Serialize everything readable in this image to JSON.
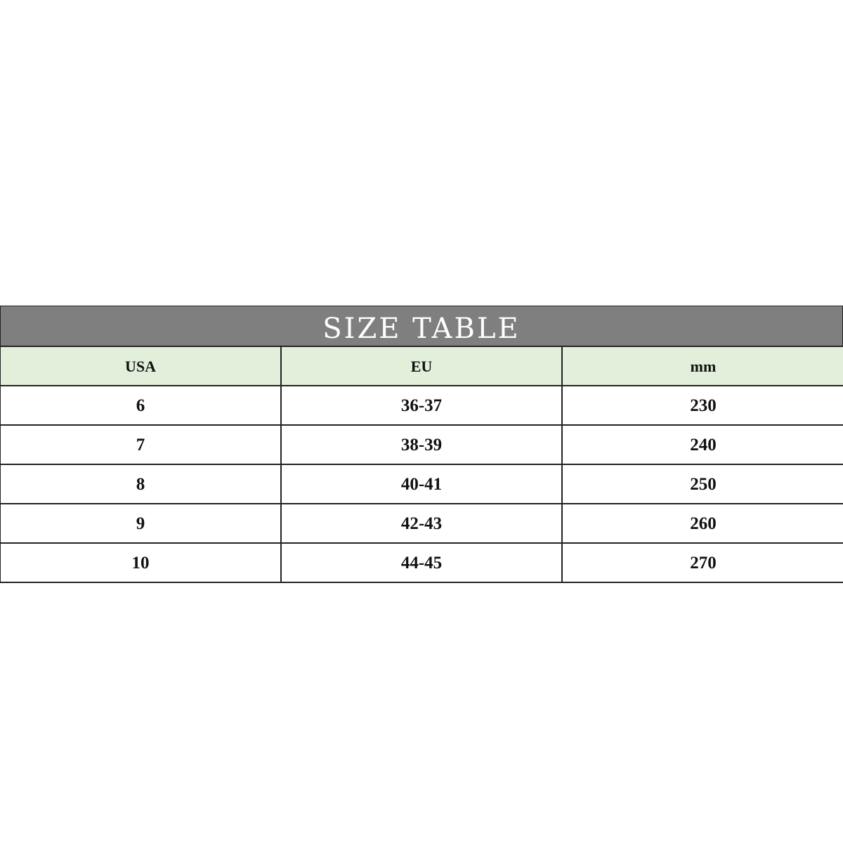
{
  "title": "SIZE TABLE",
  "colors": {
    "title_bg": "#7f7f7f",
    "header_bg": "#e2efda"
  },
  "headers": [
    "USA",
    "EU",
    "mm"
  ],
  "rows": [
    [
      "6",
      "36-37",
      "230"
    ],
    [
      "7",
      "38-39",
      "240"
    ],
    [
      "8",
      "40-41",
      "250"
    ],
    [
      "9",
      "42-43",
      "260"
    ],
    [
      "10",
      "44-45",
      "270"
    ]
  ]
}
